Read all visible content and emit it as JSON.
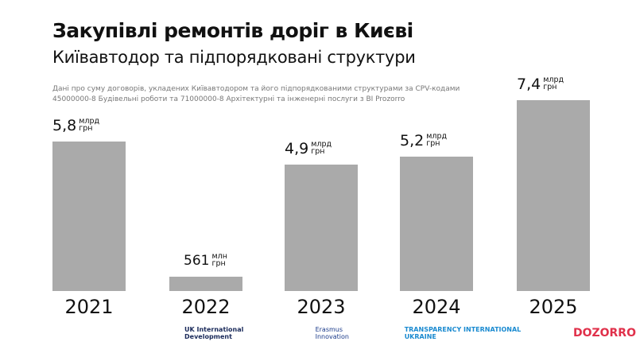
{
  "title": "Закупівлі ремонтів доріг в Києві",
  "subtitle": "Київавтодор та підпорядковані структури",
  "note": "Дані про суму договорів, укладених Київавтодором та його підпорядкованими структурами за CPV-кодами 45000000-8 Будівельні роботи та 71000000-8 Архітектурні та інженерні послуги з BI Prozorro",
  "logos": [
    "UK International Development",
    "Erasmus Innovation",
    "TRANSPARENCY INTERNATIONAL UKRAINE",
    "DOZORRO"
  ],
  "chart_data": {
    "type": "bar",
    "categories": [
      "2021",
      "2022",
      "2023",
      "2024",
      "2025"
    ],
    "values": [
      5.8,
      0.561,
      4.9,
      5.2,
      7.4
    ],
    "unit": "млрд грн",
    "data_labels": [
      {
        "value": "5,8",
        "unit": "млрд грн"
      },
      {
        "value": "561",
        "unit": "млн грн"
      },
      {
        "value": "4,9",
        "unit": "млрд грн"
      },
      {
        "value": "5,2",
        "unit": "млрд грн"
      },
      {
        "value": "7,4",
        "unit": "млрд грн"
      }
    ],
    "bar_color": "#aaaaaa",
    "grid": false,
    "ylim": [
      0,
      7.4
    ]
  }
}
